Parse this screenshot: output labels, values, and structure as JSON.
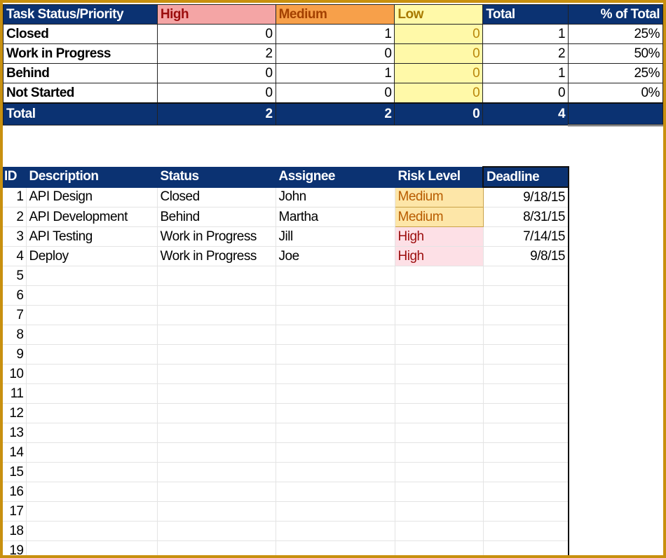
{
  "summary": {
    "headers": [
      "Task Status/Priority",
      "High",
      "Medium",
      "Low",
      "Total",
      "% of Total"
    ],
    "rows": [
      {
        "label": "Closed",
        "high": "0",
        "medium": "1",
        "low": "0",
        "total": "1",
        "pct": "25%"
      },
      {
        "label": "Work in Progress",
        "high": "2",
        "medium": "0",
        "low": "0",
        "total": "2",
        "pct": "50%"
      },
      {
        "label": "Behind",
        "high": "0",
        "medium": "1",
        "low": "0",
        "total": "1",
        "pct": "25%"
      },
      {
        "label": "Not Started",
        "high": "0",
        "medium": "0",
        "low": "0",
        "total": "0",
        "pct": "0%"
      }
    ],
    "total": {
      "label": "Total",
      "high": "2",
      "medium": "2",
      "low": "0",
      "total": "4",
      "pct": ""
    }
  },
  "tasks": {
    "headers": [
      "ID",
      "Description",
      "Status",
      "Assignee",
      "Risk Level",
      "Deadline"
    ],
    "rows": [
      {
        "id": "1",
        "description": "API Design",
        "status": "Closed",
        "assignee": "John",
        "risk": "Medium",
        "deadline": "9/18/15"
      },
      {
        "id": "2",
        "description": "API Development",
        "status": "Behind",
        "assignee": "Martha",
        "risk": "Medium",
        "deadline": "8/31/15"
      },
      {
        "id": "3",
        "description": "API Testing",
        "status": "Work in Progress",
        "assignee": "Jill",
        "risk": "High",
        "deadline": "7/14/15"
      },
      {
        "id": "4",
        "description": "Deploy",
        "status": "Work in Progress",
        "assignee": "Joe",
        "risk": "High",
        "deadline": "9/8/15"
      },
      {
        "id": "5"
      },
      {
        "id": "6"
      },
      {
        "id": "7"
      },
      {
        "id": "8"
      },
      {
        "id": "9"
      },
      {
        "id": "10"
      },
      {
        "id": "11"
      },
      {
        "id": "12"
      },
      {
        "id": "13"
      },
      {
        "id": "14"
      },
      {
        "id": "15"
      },
      {
        "id": "16"
      },
      {
        "id": "17"
      },
      {
        "id": "18"
      },
      {
        "id": "19"
      }
    ]
  },
  "colors": {
    "header_bg": "#0b3272",
    "high": "#f4a5a5",
    "medium": "#f7a04a",
    "low": "#fff9a8",
    "frame": "#c8900f"
  }
}
